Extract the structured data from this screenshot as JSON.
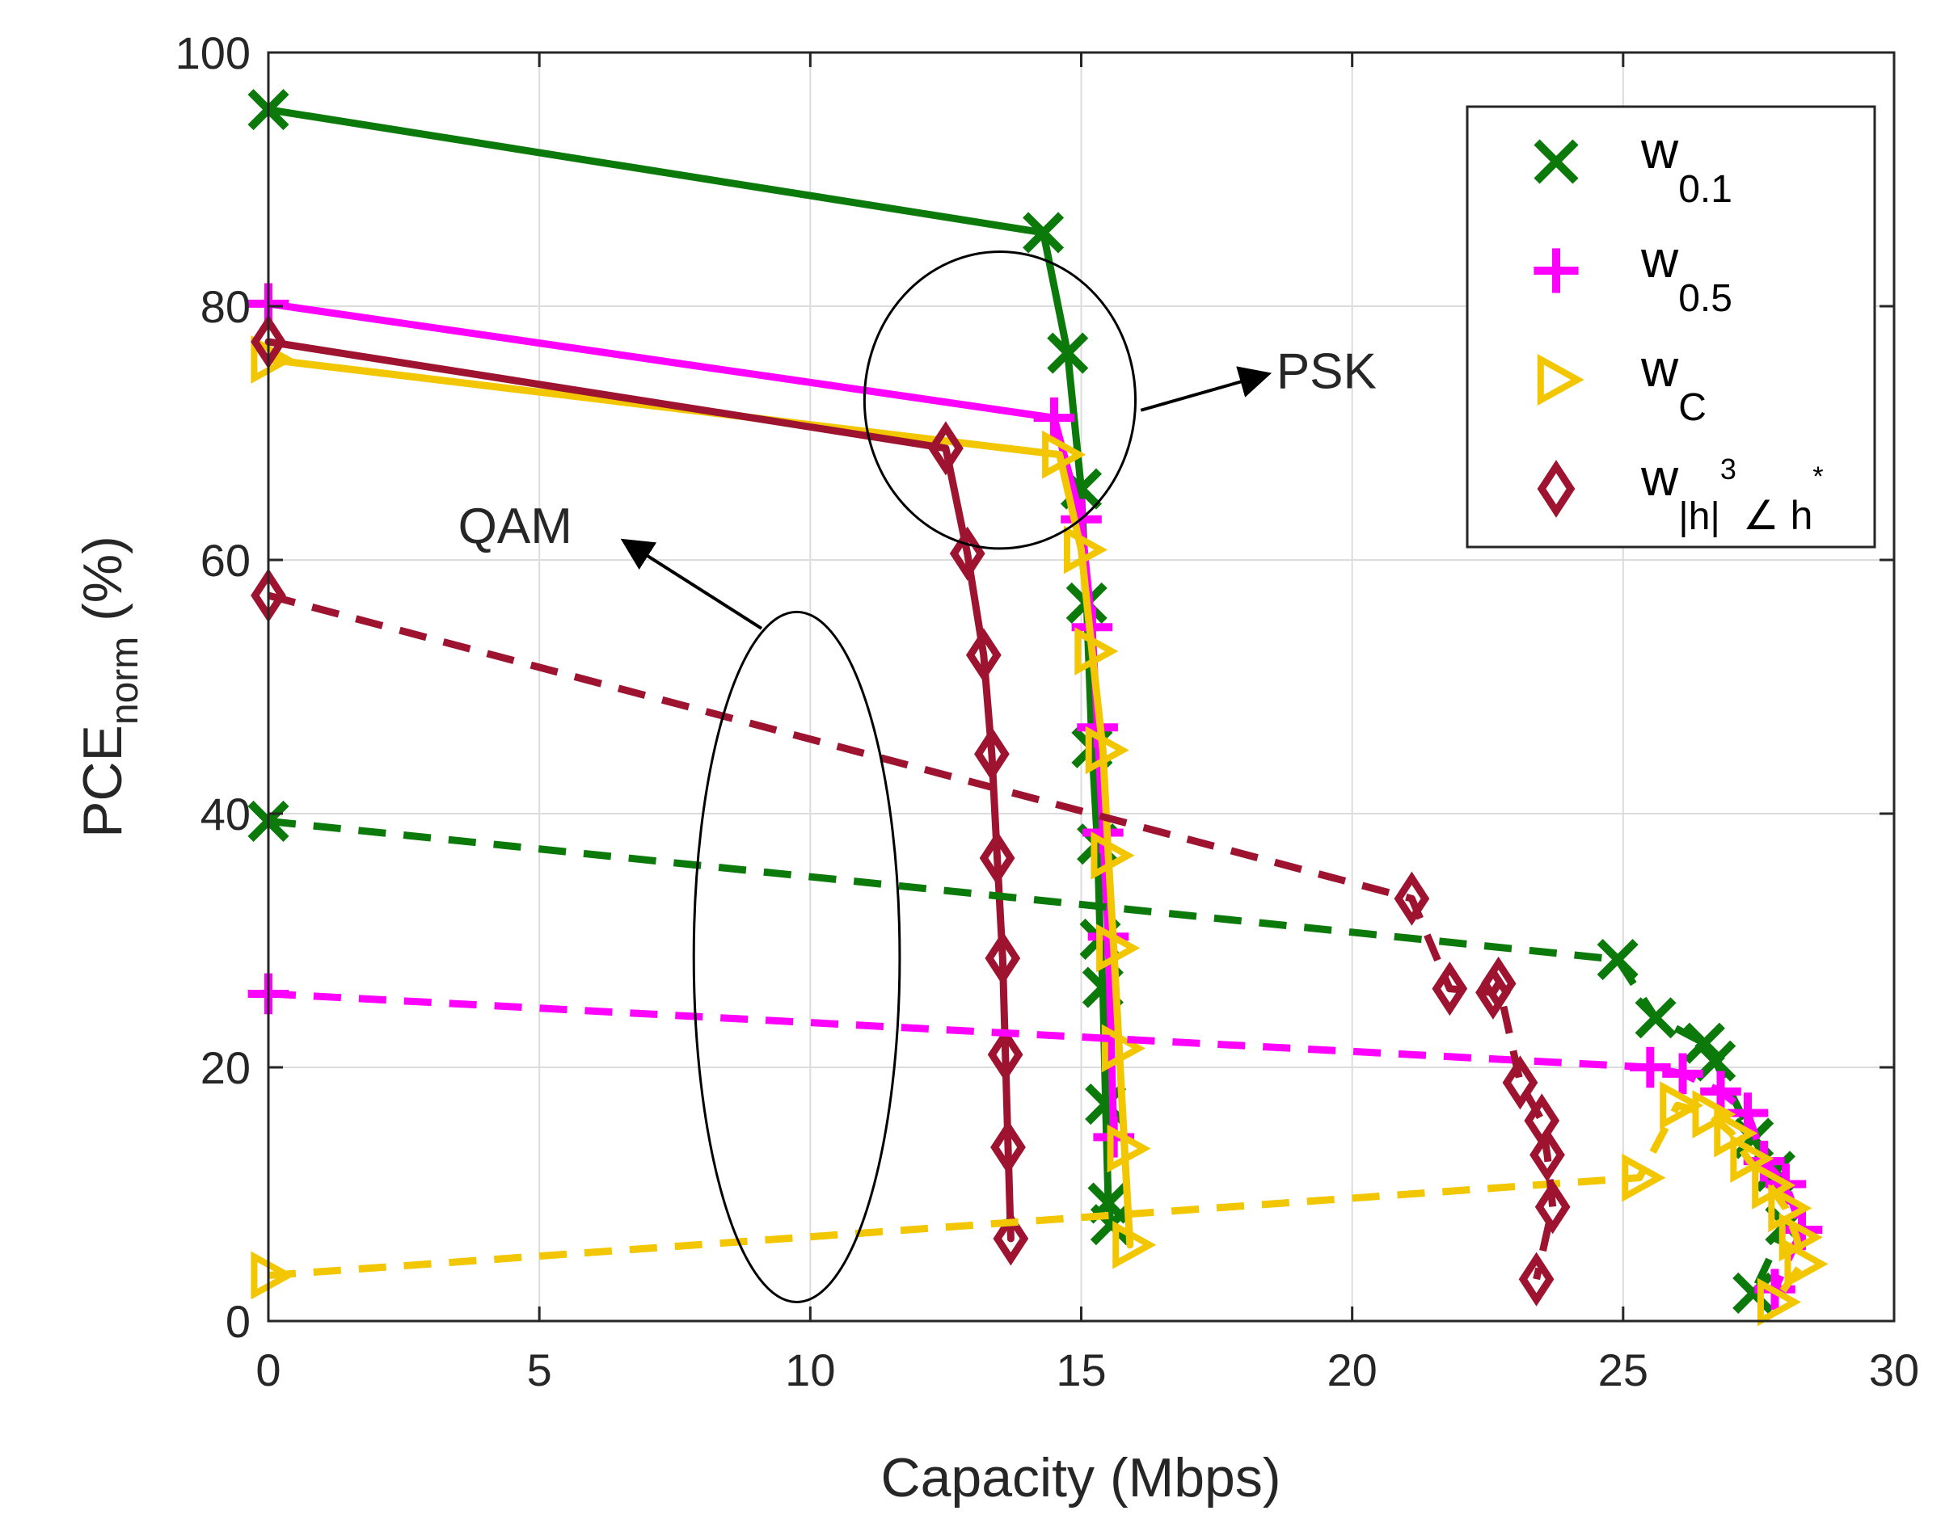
{
  "chart_data": {
    "type": "line",
    "title": "",
    "xlabel": "Capacity (Mbps)",
    "ylabel": {
      "main": "PCE",
      "sub": "norm",
      "suffix": " (%)"
    },
    "xlim": [
      0,
      30
    ],
    "ylim": [
      0,
      100
    ],
    "xticks": [
      0,
      5,
      10,
      15,
      20,
      25,
      30
    ],
    "yticks": [
      0,
      20,
      40,
      60,
      80,
      100
    ],
    "grid": true,
    "legend_position": "top-right",
    "legend": [
      {
        "id": "w01",
        "marker": "x",
        "color": "#0b7a0b",
        "base": "w",
        "sub": "0.1",
        "sup": ""
      },
      {
        "id": "w05",
        "marker": "plus",
        "color": "#ff00ff",
        "base": "w",
        "sub": "0.5",
        "sup": ""
      },
      {
        "id": "wC",
        "marker": "triangle-right",
        "color": "#f2c600",
        "base": "w",
        "sub": "C",
        "sup": ""
      },
      {
        "id": "wh",
        "marker": "diamond",
        "color": "#9e1430",
        "base": "w",
        "sub": "|h|",
        "sup": "3",
        "tail": "∠ h",
        "tailsup": "*"
      }
    ],
    "series": [
      {
        "name": "w0.1 PSK",
        "legend_id": "w01",
        "style": "solid",
        "color": "#0b7a0b",
        "marker": "x",
        "x": [
          0,
          14.3,
          14.75,
          15.0,
          15.1,
          15.2,
          15.3,
          15.35,
          15.4,
          15.45,
          15.5,
          15.55
        ],
        "y": [
          95.5,
          85.8,
          76.3,
          65.6,
          56.6,
          45.2,
          37.6,
          30.1,
          26.3,
          17.1,
          9.3,
          7.6
        ]
      },
      {
        "name": "w0.5 PSK",
        "legend_id": "w05",
        "style": "solid",
        "color": "#ff00ff",
        "marker": "plus",
        "x": [
          0,
          14.5,
          15.0,
          15.2,
          15.3,
          15.4,
          15.5,
          15.6
        ],
        "y": [
          80.2,
          71.2,
          63.2,
          54.7,
          46.8,
          38.5,
          30.3,
          14.5
        ]
      },
      {
        "name": "wC PSK",
        "legend_id": "wC",
        "style": "solid",
        "color": "#f2c600",
        "marker": "triangle-right",
        "x": [
          0,
          14.6,
          15.0,
          15.2,
          15.4,
          15.5,
          15.6,
          15.7,
          15.8,
          15.9
        ],
        "y": [
          75.8,
          68.3,
          60.8,
          52.8,
          45.0,
          36.7,
          29.4,
          21.5,
          13.6,
          6.0
        ]
      },
      {
        "name": "w|h|3∠h* PSK",
        "legend_id": "wh",
        "style": "solid",
        "color": "#9e1430",
        "marker": "diamond",
        "x": [
          0,
          12.5,
          12.9,
          13.2,
          13.35,
          13.45,
          13.55,
          13.6,
          13.65,
          13.7
        ],
        "y": [
          77.2,
          68.8,
          60.5,
          52.5,
          44.7,
          36.5,
          28.6,
          21.0,
          13.7,
          6.5
        ]
      },
      {
        "name": "w0.1 QAM",
        "legend_id": "w01",
        "style": "dashed",
        "color": "#0b7a0b",
        "marker": "x",
        "x": [
          0,
          24.9,
          25.6,
          26.5,
          26.7,
          27.4,
          27.8,
          28.0,
          27.4
        ],
        "y": [
          39.4,
          28.5,
          23.9,
          21.9,
          20.5,
          14.4,
          11.8,
          7.6,
          2.2
        ]
      },
      {
        "name": "w0.5 QAM",
        "legend_id": "w05",
        "style": "dashed",
        "color": "#ff00ff",
        "marker": "plus",
        "x": [
          0,
          25.5,
          26.1,
          26.8,
          27.3,
          27.6,
          28.0,
          28.3,
          27.8
        ],
        "y": [
          25.8,
          20.0,
          19.5,
          18.1,
          16.4,
          12.6,
          10.8,
          7.2,
          2.5
        ]
      },
      {
        "name": "wC QAM",
        "legend_id": "wC",
        "style": "dashed",
        "color": "#f2c600",
        "marker": "triangle-right",
        "x": [
          0,
          25.3,
          26.0,
          26.6,
          27.0,
          27.3,
          27.7,
          28.0,
          28.2,
          28.3,
          27.8
        ],
        "y": [
          3.6,
          11.3,
          17.0,
          16.3,
          14.8,
          12.8,
          10.7,
          8.9,
          6.6,
          4.5,
          1.5
        ]
      },
      {
        "name": "w|h|3∠h* QAM",
        "legend_id": "wh",
        "style": "dashed",
        "color": "#9e1430",
        "marker": "diamond",
        "x": [
          0,
          21.1,
          21.8,
          22.6,
          22.7,
          23.1,
          23.5,
          23.6,
          23.7,
          23.4
        ],
        "y": [
          57.2,
          33.3,
          26.2,
          25.9,
          26.6,
          18.8,
          15.8,
          13.1,
          9.0,
          3.3
        ]
      }
    ],
    "annotations": [
      {
        "text": "PSK",
        "cx": 13.5,
        "cy": 72.6,
        "rx": 2.5,
        "ry": 11.7,
        "text_x": 18.6,
        "text_y": 74.8,
        "arrow_from": [
          16.1,
          71.8
        ],
        "arrow_to": [
          18.4,
          74.6
        ]
      },
      {
        "text": "QAM",
        "cx": 9.75,
        "cy": 28.7,
        "rx": 1.9,
        "ry": 27.2,
        "text_x": 3.5,
        "text_y": 62.6,
        "arrow_from": [
          9.1,
          54.6
        ],
        "arrow_to": [
          6.6,
          61.4
        ]
      }
    ]
  }
}
